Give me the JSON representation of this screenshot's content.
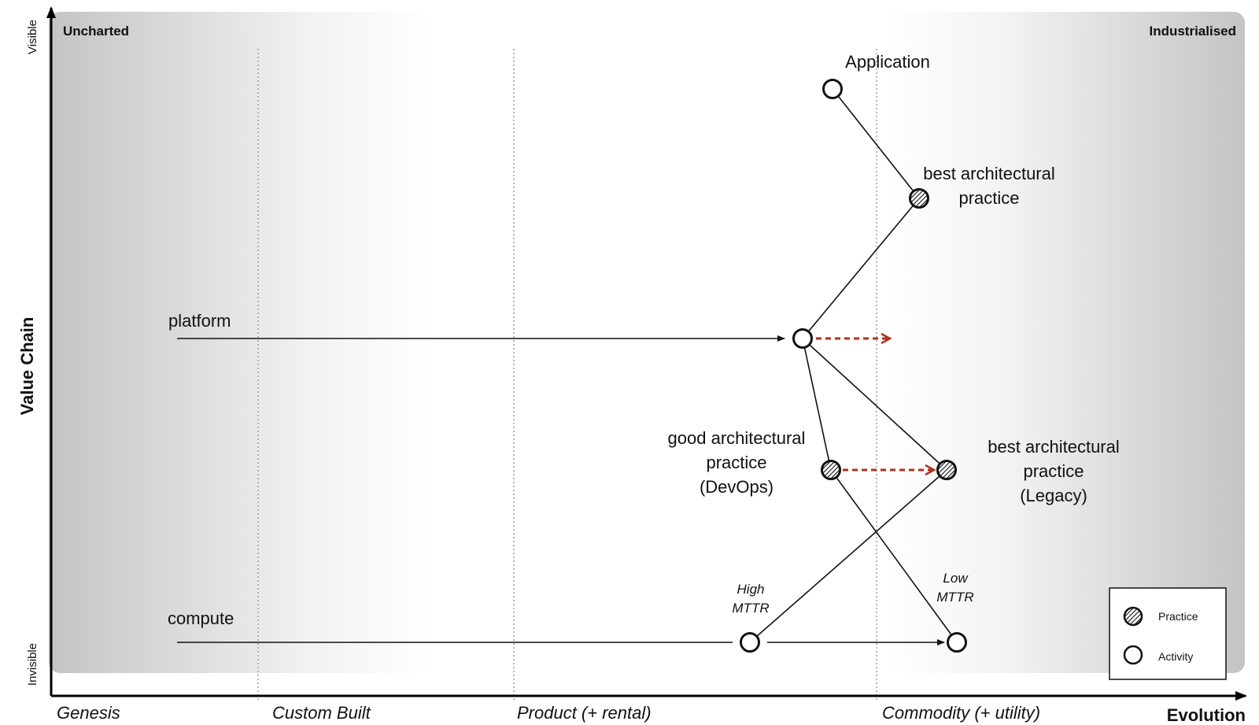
{
  "corners": {
    "left": "Uncharted",
    "right": "Industrialised"
  },
  "axes": {
    "y_title": "Value Chain",
    "y_top": "Visible",
    "y_bottom": "Invisible",
    "x_title": "Evolution"
  },
  "stages": [
    "Genesis",
    "Custom Built",
    "Product (+ rental)",
    "Commodity (+ utility)"
  ],
  "nodes": {
    "application": "Application",
    "best_top": [
      "best architectural",
      "practice"
    ],
    "platform": "platform",
    "good_devops": [
      "good architectural",
      "practice",
      "(DevOps)"
    ],
    "best_legacy": [
      "best architectural",
      "practice",
      "(Legacy)"
    ],
    "compute": "compute",
    "high_mttr": [
      "High",
      "MTTR"
    ],
    "low_mttr": [
      "Low",
      "MTTR"
    ]
  },
  "legend": {
    "practice": "Practice",
    "activity": "Activity"
  },
  "colors": {
    "movement_arrow": "#b03020",
    "line": "#111111"
  }
}
